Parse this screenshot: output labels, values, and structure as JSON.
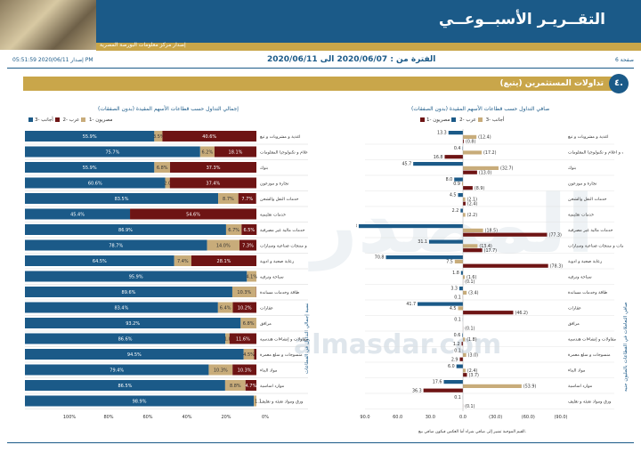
{
  "header": {
    "title": "التقــريـر الأسبــوعــي",
    "publisher": "إصدار مركز معلومات البورصة المصرية"
  },
  "meta": {
    "page": "صفحة 6",
    "period": "الفترة من : 2020/06/07 الى 2020/06/11",
    "issued": "إصدار 2020/06/11 05:51:59 PM"
  },
  "section": {
    "number": "٤.",
    "title": "تداولات المستثمرين (يتبع)"
  },
  "watermark": "almasdar.com",
  "note": "القيم الموجبة تشير إلى صافي شراء أما العكس فيكون صافي بيع.",
  "colors": {
    "egyptian": "#1b5a88",
    "arab": "#c8ac7a",
    "foreign": "#6e1414"
  },
  "legend": {
    "egyptian": "مصريون -1",
    "arab": "عرب -2",
    "foreign": "أجانب -3"
  },
  "chart_data": [
    {
      "type": "bar",
      "title": "إجمالي التداول حسب قطاعات الأسهم المقيدة (بدون الصفقات)",
      "ylabel": "نسبة إجمالي التداول في القطاعات",
      "categories": [
        "اغذية و مشروبات و تبغ",
        "اتصالات و اعلام و تكنولوجيا المعلومات",
        "بنوك",
        "تجارة و موزعون",
        "خدمات النقل والشحن",
        "خدمات تعليمية",
        "خدمات مالية غير مصرفية",
        "خدمات و منتجات صناعية وسيارات",
        "رعاية صحية و ادوية",
        "سياحة وترفيه",
        "طاقة وخدمات مساندة",
        "عقارات",
        "مرافق",
        "مقاولات و إنشاءات هندسية",
        "منسوجات و سلع معمرة",
        "مواد البناء",
        "موارد اساسية",
        "ورق ومواد تعبئة و تغليف"
      ],
      "series": [
        {
          "name": "مصريون -1",
          "values": [
            55.9,
            75.7,
            55.9,
            60.6,
            83.5,
            45.4,
            86.9,
            78.7,
            64.5,
            95.9,
            89.6,
            83.4,
            93.2,
            86.6,
            94.5,
            79.4,
            86.5,
            98.9
          ]
        },
        {
          "name": "عرب -2",
          "values": [
            3.5,
            6.2,
            6.8,
            2.0,
            8.7,
            0.0,
            6.7,
            14.0,
            7.4,
            4.1,
            10.3,
            6.4,
            6.8,
            1.8,
            4.5,
            10.3,
            8.8,
            1.1
          ]
        },
        {
          "name": "أجانب -3",
          "values": [
            40.6,
            18.1,
            37.3,
            37.4,
            7.7,
            54.6,
            6.5,
            7.3,
            28.1,
            0.0,
            0.1,
            10.2,
            0.0,
            11.6,
            1.0,
            10.3,
            4.7,
            0.0
          ]
        }
      ],
      "xlabels": [
        "100%",
        "80%",
        "60%",
        "40%",
        "20%",
        "0%"
      ],
      "data_labels": [
        [
          "55.9%",
          "3.5%",
          "40.6%"
        ],
        [
          "75.7%",
          "6.2%",
          "18.1%"
        ],
        [
          "55.9%",
          "6.8%",
          "37.3%"
        ],
        [
          "60.6%",
          "2.0%",
          "37.4%"
        ],
        [
          "83.5%",
          "8.7%",
          "7.7%"
        ],
        [
          "45.4%",
          "",
          "54.6%"
        ],
        [
          "86.9%",
          "6.7%",
          "6.5%"
        ],
        [
          "78.7%",
          "14.0%",
          "7.3%"
        ],
        [
          "64.5%",
          "7.4%",
          "28.1%"
        ],
        [
          "95.9%",
          "4.1%",
          ""
        ],
        [
          "89.6%",
          "10.3%",
          ""
        ],
        [
          "83.4%",
          "6.4%",
          "10.2%"
        ],
        [
          "93.2%",
          "6.8%",
          ""
        ],
        [
          "86.6%",
          "1.8%",
          "11.6%"
        ],
        [
          "94.5%",
          "4.5%",
          ""
        ],
        [
          "79.4%",
          "10.3%",
          "10.3%"
        ],
        [
          "86.5%",
          "8.8%",
          "4.7%"
        ],
        [
          "98.9%",
          "1.1",
          ""
        ]
      ]
    },
    {
      "type": "bar",
      "title": "صافي التداول حسب قطاعات الأسهم المقيدة (بدون الصفقات)",
      "ylabel": "صافي التعاملات في القطاعات بالمليون جنيه",
      "categories": [
        "اغذية و مشروبات و تبغ",
        "اتصالات و اعلام و تكنولوجيا المعلومات",
        "بنوك",
        "تجارة و موزعون",
        "خدمات النقل والشحن",
        "خدمات تعليمية",
        "خدمات مالية غير مصرفية",
        "خدمات و منتجات صناعية وسيارات",
        "رعاية صحية و ادوية",
        "سياحة وترفيه",
        "طاقة وخدمات مساندة",
        "عقارات",
        "مرافق",
        "مقاولات و إنشاءات هندسية",
        "منسوجات و سلع معمرة",
        "مواد البناء",
        "موارد اساسية",
        "ورق ومواد تعبئة و تغليف"
      ],
      "series": [
        {
          "name": "مصريون -1",
          "values": [
            13.3,
            0.4,
            45.7,
            8.0,
            4.5,
            2.2,
            95.8,
            31.1,
            70.8,
            1.8,
            3.3,
            41.7,
            0.1,
            0.6,
            0.1,
            6.0,
            17.6,
            0.1
          ]
        },
        {
          "name": "عرب -2",
          "values": [
            -12.4,
            -17.2,
            -32.7,
            0.9,
            -2.1,
            -2.2,
            -18.5,
            -13.4,
            7.5,
            -1.6,
            -3.4,
            4.5,
            null,
            -1.8,
            -3.0,
            -2.4,
            -53.9,
            null
          ]
        },
        {
          "name": "أجانب -3",
          "values": [
            -0.8,
            16.8,
            -13.0,
            -8.9,
            -2.4,
            null,
            -77.3,
            -17.7,
            -78.3,
            -0.1,
            0.1,
            -46.2,
            -0.1,
            1.2,
            2.9,
            -3.7,
            36.3,
            -0.1
          ]
        }
      ],
      "labels": [
        [
          "13.3",
          "(12.4)",
          "(0.8)"
        ],
        [
          "0.4",
          "(17.2)",
          "16.8"
        ],
        [
          "45.7",
          "(32.7)",
          "(13.0)"
        ],
        [
          "8.0",
          "0.9",
          "(8.9)"
        ],
        [
          "4.5",
          "(2.1)",
          "(2.4)"
        ],
        [
          "2.2",
          "(2.2)",
          ""
        ],
        [
          "95.8",
          "(18.5)",
          "(77.3)"
        ],
        [
          "31.1",
          "(13.4)",
          "(17.7)"
        ],
        [
          "70.8",
          "7.5",
          "(78.3)"
        ],
        [
          "1.8",
          "(1.6)",
          "(0.1)"
        ],
        [
          "3.3",
          "(3.4)",
          "0.1"
        ],
        [
          "41.7",
          "4.5",
          "(46.2)"
        ],
        [
          "0.1",
          "",
          "(0.1)"
        ],
        [
          "0.6",
          "(1.8)",
          "1.2"
        ],
        [
          "0.1",
          "(3.0)",
          "2.9"
        ],
        [
          "6.0",
          "(2.4)",
          "(3.7)"
        ],
        [
          "17.6",
          "(53.9)",
          "36.3"
        ],
        [
          "0.1",
          "",
          "(0.1)"
        ]
      ],
      "xlabels": [
        "90.0",
        "60.0",
        "30.0",
        "0.0",
        "(30.0)",
        "(60.0)",
        "(90.0)"
      ],
      "xlim": [
        90,
        -90
      ]
    }
  ]
}
